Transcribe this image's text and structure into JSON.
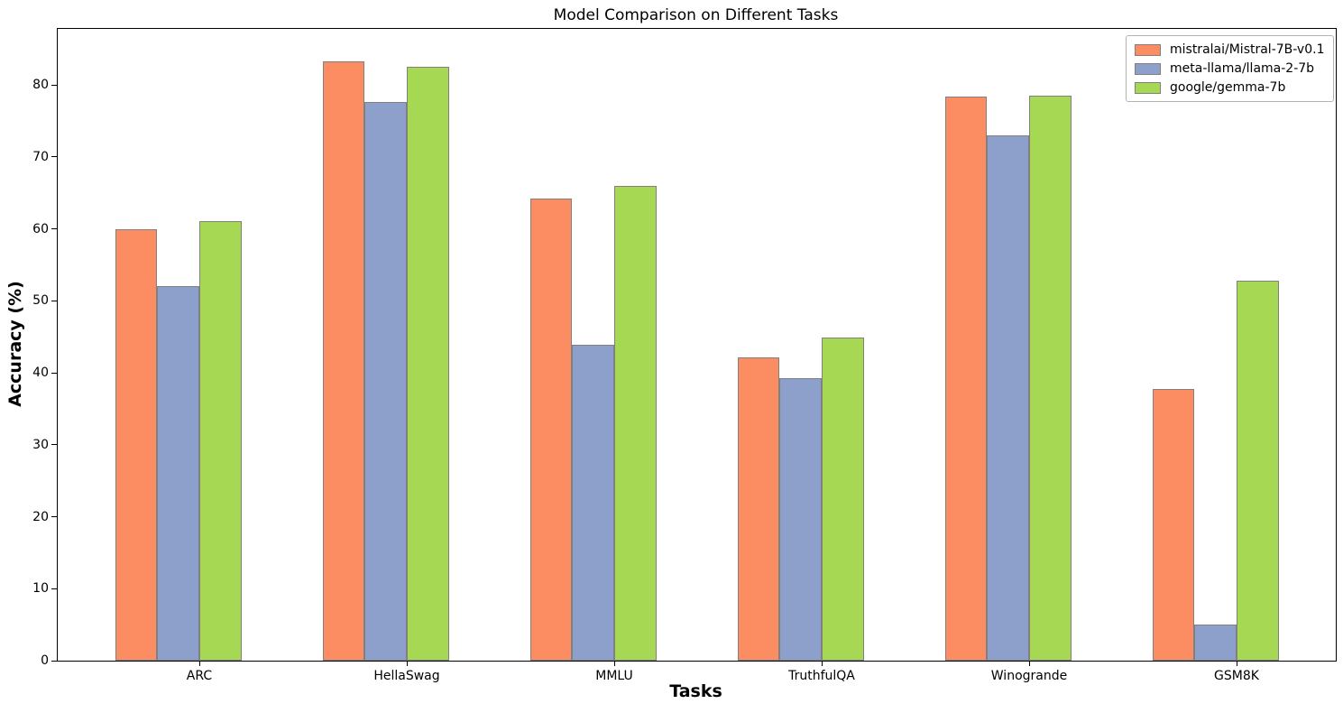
{
  "chart_data": {
    "type": "bar",
    "title": "Model Comparison on Different Tasks",
    "xlabel": "Tasks",
    "ylabel": "Accuracy (%)",
    "categories": [
      "ARC",
      "HellaSwag",
      "MMLU",
      "TruthfulQA",
      "Winogrande",
      "GSM8K"
    ],
    "series": [
      {
        "name": "mistralai/Mistral-7B-v0.1",
        "color": "#fc8d62",
        "values": [
          60.0,
          83.3,
          64.2,
          42.2,
          78.4,
          37.8
        ]
      },
      {
        "name": "meta-llama/llama-2-7b",
        "color": "#8da0cb",
        "values": [
          52.1,
          77.7,
          43.9,
          39.3,
          73.0,
          5.0
        ]
      },
      {
        "name": "google/gemma-7b",
        "color": "#a6d854",
        "values": [
          61.1,
          82.5,
          66.0,
          44.9,
          78.5,
          52.8
        ]
      }
    ],
    "ylim": [
      0,
      87.8
    ],
    "yticks": [
      0,
      10,
      20,
      30,
      40,
      50,
      60,
      70,
      80
    ],
    "legend_position": "upper right",
    "grid": false,
    "bar_edge_color": "#808080",
    "spine_color": "#000000"
  }
}
